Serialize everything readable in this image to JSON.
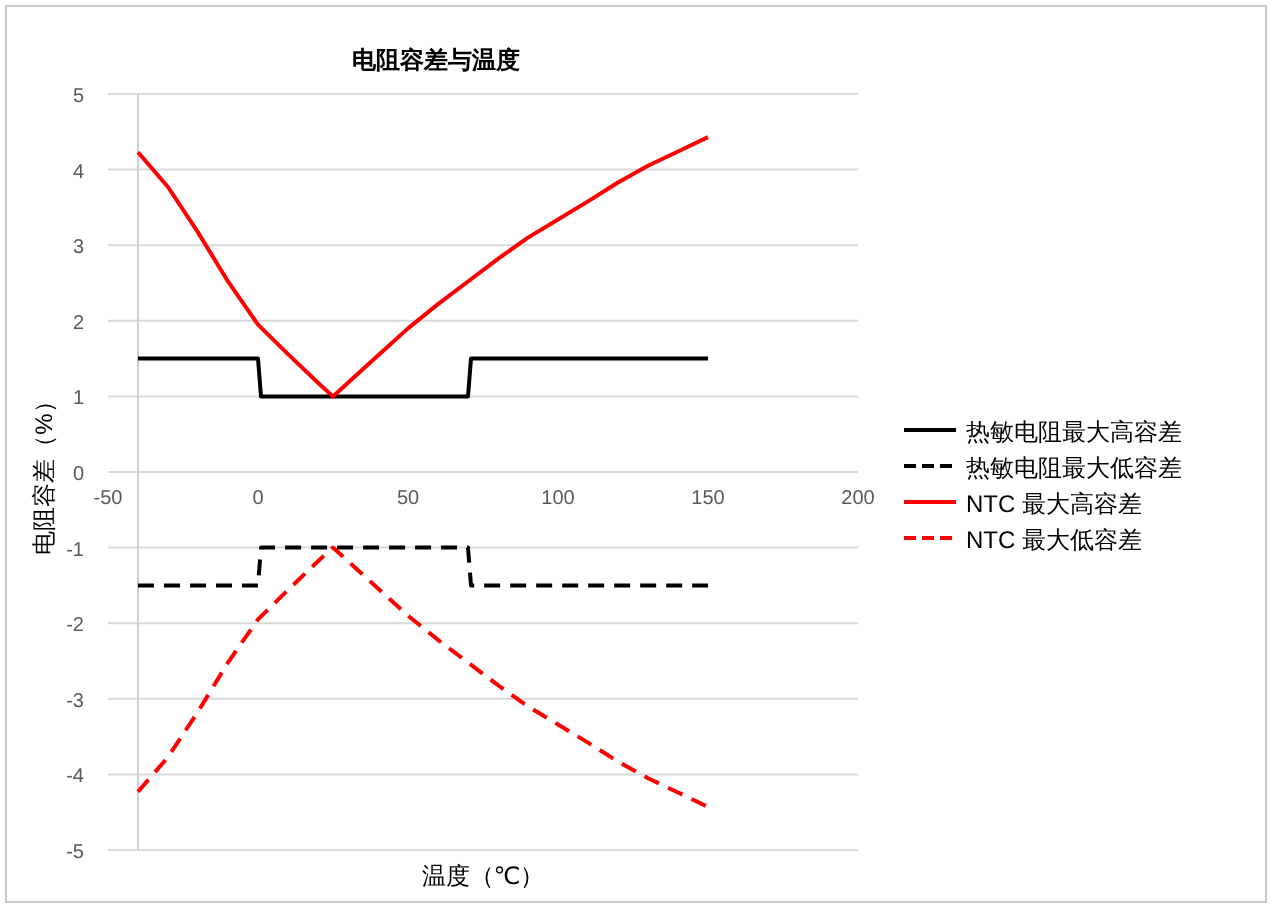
{
  "chart_data": {
    "type": "line",
    "title": "电阻容差与温度",
    "xlabel": "温度（℃）",
    "ylabel": "电阻容差（%）",
    "xlim": [
      -50,
      200
    ],
    "xticks": [
      -50,
      0,
      50,
      100,
      150,
      200
    ],
    "ylim": [
      -5,
      5
    ],
    "yticks": [
      -5,
      -4,
      -3,
      -2,
      -1,
      0,
      1,
      2,
      3,
      4,
      5
    ],
    "grid": "y",
    "legend": "right",
    "ref_lines": [
      {
        "axis": "x",
        "value": -40,
        "color": "#d0d0d0"
      }
    ],
    "series": [
      {
        "name": "热敏电阻最大高容差",
        "color": "#000000",
        "line_style": "solid",
        "x": [
          -40,
          0,
          1,
          70,
          71,
          150
        ],
        "values": [
          1.5,
          1.5,
          1,
          1,
          1.5,
          1.5
        ]
      },
      {
        "name": "热敏电阻最大低容差",
        "color": "#000000",
        "line_style": "dashed",
        "x": [
          -40,
          0,
          1,
          70,
          71,
          150
        ],
        "values": [
          -1.5,
          -1.5,
          -1,
          -1,
          -1.5,
          -1.5
        ]
      },
      {
        "name": "NTC 最大高容差",
        "color": "#ff0000",
        "line_style": "solid",
        "x": [
          -40,
          -30,
          -20,
          -10,
          0,
          10,
          20,
          25,
          30,
          40,
          50,
          60,
          70,
          80,
          90,
          100,
          110,
          120,
          130,
          140,
          150
        ],
        "values": [
          4.23,
          3.77,
          3.17,
          2.52,
          1.95,
          1.56,
          1.18,
          1.0,
          1.18,
          1.54,
          1.9,
          2.22,
          2.52,
          2.82,
          3.1,
          3.34,
          3.58,
          3.83,
          4.05,
          4.24,
          4.43
        ]
      },
      {
        "name": "NTC 最大低容差",
        "color": "#ff0000",
        "line_style": "dashed",
        "x": [
          -40,
          -30,
          -20,
          -10,
          0,
          10,
          20,
          25,
          30,
          40,
          50,
          60,
          70,
          80,
          90,
          100,
          110,
          120,
          130,
          140,
          150
        ],
        "values": [
          -4.23,
          -3.77,
          -3.17,
          -2.52,
          -1.95,
          -1.56,
          -1.18,
          -1.0,
          -1.18,
          -1.54,
          -1.9,
          -2.22,
          -2.52,
          -2.82,
          -3.1,
          -3.34,
          -3.58,
          -3.83,
          -4.05,
          -4.24,
          -4.43
        ]
      }
    ]
  }
}
